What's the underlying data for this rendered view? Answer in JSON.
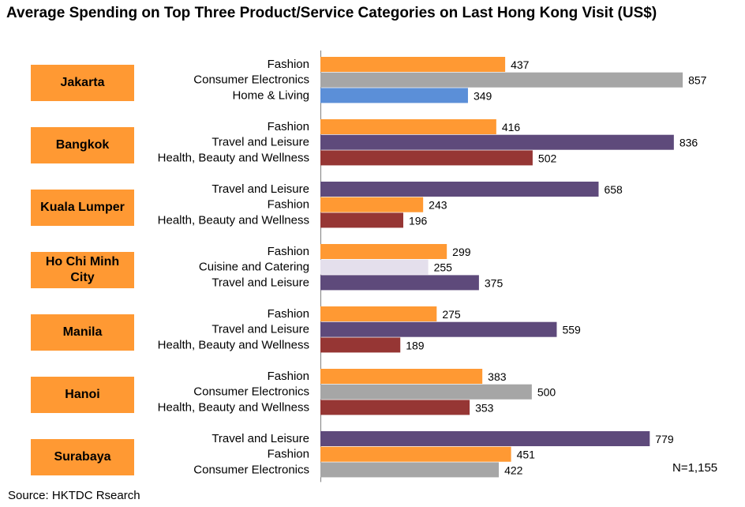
{
  "chart_data": {
    "type": "bar",
    "orientation": "horizontal",
    "title": "Average Spending on Top Three Product/Service Categories on Last Hong Kong Visit (US$)",
    "xlim": [
      0,
      1000
    ],
    "grid": false,
    "legend": "none",
    "colors": {
      "Fashion": "#ff9933",
      "Consumer Electronics": "#a6a6a6",
      "Home & Living": "#5b8fd8",
      "Travel and Leisure": "#5e4a7b",
      "Health, Beauty and Wellness": "#963634",
      "Cuisine and Catering": "#e4dfec"
    },
    "groups": [
      {
        "city": "Jakarta",
        "bars": [
          {
            "category": "Fashion",
            "value": 437
          },
          {
            "category": "Consumer Electronics",
            "value": 857
          },
          {
            "category": "Home & Living",
            "value": 349
          }
        ]
      },
      {
        "city": "Bangkok",
        "bars": [
          {
            "category": "Fashion",
            "value": 416
          },
          {
            "category": "Travel and Leisure",
            "value": 836
          },
          {
            "category": "Health, Beauty and Wellness",
            "value": 502
          }
        ]
      },
      {
        "city": "Kuala Lumper",
        "bars": [
          {
            "category": "Travel and Leisure",
            "value": 658
          },
          {
            "category": "Fashion",
            "value": 243
          },
          {
            "category": "Health, Beauty and Wellness",
            "value": 196
          }
        ]
      },
      {
        "city": "Ho Chi Minh City",
        "bars": [
          {
            "category": "Fashion",
            "value": 299
          },
          {
            "category": "Cuisine and Catering",
            "value": 255
          },
          {
            "category": "Travel and Leisure",
            "value": 375
          }
        ]
      },
      {
        "city": "Manila",
        "bars": [
          {
            "category": "Fashion",
            "value": 275
          },
          {
            "category": "Travel and Leisure",
            "value": 559
          },
          {
            "category": "Health, Beauty and Wellness",
            "value": 189
          }
        ]
      },
      {
        "city": "Hanoi",
        "bars": [
          {
            "category": "Fashion",
            "value": 383
          },
          {
            "category": "Consumer Electronics",
            "value": 500
          },
          {
            "category": "Health, Beauty and Wellness",
            "value": 353
          }
        ]
      },
      {
        "city": "Surabaya",
        "bars": [
          {
            "category": "Travel and Leisure",
            "value": 779
          },
          {
            "category": "Fashion",
            "value": 451
          },
          {
            "category": "Consumer Electronics",
            "value": 422
          }
        ]
      }
    ]
  },
  "annotations": {
    "sample_size": "N=1,155",
    "source": "Source: HKTDC Rsearch"
  }
}
